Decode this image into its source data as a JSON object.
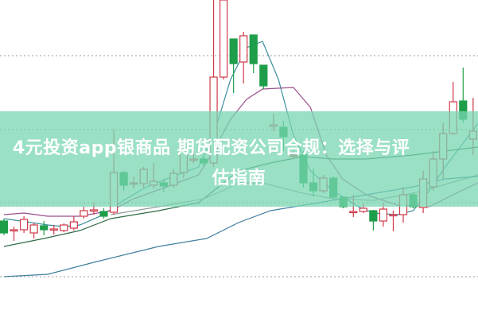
{
  "overlay_title": {
    "line1": "4元投资app银商品 期货配资公司合规：选择与评",
    "line2": "估指南",
    "banner_color": "#78d6b2"
  },
  "chart_data": {
    "type": "candlestick",
    "title": "",
    "xlabel": "",
    "ylabel": "",
    "grid": "horizontal dotted",
    "gridlines": [
      330,
      237,
      145,
      52
    ],
    "ylim": [
      0,
      400
    ],
    "colors": {
      "up": "#d0394a",
      "down": "#1e9e4a"
    },
    "candles": [
      {
        "o": 122,
        "c": 107,
        "h": 125,
        "l": 104
      },
      {
        "o": 110,
        "c": 111,
        "h": 115,
        "l": 97
      },
      {
        "o": 111,
        "c": 124,
        "h": 128,
        "l": 107
      },
      {
        "o": 107,
        "c": 117,
        "h": 120,
        "l": 100
      },
      {
        "o": 116,
        "c": 111,
        "h": 122,
        "l": 104
      },
      {
        "o": 112,
        "c": 112,
        "h": 117,
        "l": 105
      },
      {
        "o": 110,
        "c": 117,
        "h": 119,
        "l": 108
      },
      {
        "o": 113,
        "c": 121,
        "h": 128,
        "l": 110
      },
      {
        "o": 128,
        "c": 135,
        "h": 140,
        "l": 125
      },
      {
        "o": 136,
        "c": 136,
        "h": 145,
        "l": 130
      },
      {
        "o": 134,
        "c": 128,
        "h": 138,
        "l": 125
      },
      {
        "o": 133,
        "c": 183,
        "h": 237,
        "l": 130
      },
      {
        "o": 183,
        "c": 167,
        "h": 185,
        "l": 160
      },
      {
        "o": 170,
        "c": 170,
        "h": 178,
        "l": 163
      },
      {
        "o": 169,
        "c": 187,
        "h": 190,
        "l": 164
      },
      {
        "o": 167,
        "c": 172,
        "h": 195,
        "l": 163
      },
      {
        "o": 170,
        "c": 166,
        "h": 175,
        "l": 158
      },
      {
        "o": 167,
        "c": 182,
        "h": 187,
        "l": 164
      },
      {
        "o": 183,
        "c": 210,
        "h": 220,
        "l": 176
      },
      {
        "o": 200,
        "c": 200,
        "h": 210,
        "l": 195
      },
      {
        "o": 200,
        "c": 195,
        "h": 204,
        "l": 190
      },
      {
        "o": 195,
        "c": 303,
        "h": 400,
        "l": 190
      },
      {
        "o": 303,
        "c": 400,
        "h": 400,
        "l": 300
      },
      {
        "o": 351,
        "c": 320,
        "h": 351,
        "l": 283
      },
      {
        "o": 322,
        "c": 355,
        "h": 360,
        "l": 295
      },
      {
        "o": 356,
        "c": 320,
        "h": 356,
        "l": 308
      },
      {
        "o": 318,
        "c": 292,
        "h": 318,
        "l": 288
      },
      {
        "o": 241,
        "c": 243,
        "h": 257,
        "l": 235
      },
      {
        "o": 240,
        "c": 228,
        "h": 248,
        "l": 210
      },
      {
        "o": 205,
        "c": 205,
        "h": 210,
        "l": 200
      },
      {
        "o": 205,
        "c": 170,
        "h": 210,
        "l": 164
      },
      {
        "o": 170,
        "c": 160,
        "h": 188,
        "l": 153
      },
      {
        "o": 160,
        "c": 176,
        "h": 180,
        "l": 157
      },
      {
        "o": 176,
        "c": 152,
        "h": 178,
        "l": 150
      },
      {
        "o": 152,
        "c": 140,
        "h": 152,
        "l": 138
      },
      {
        "o": 133,
        "c": 134,
        "h": 155,
        "l": 127
      },
      {
        "o": 134,
        "c": 138,
        "h": 144,
        "l": 132
      },
      {
        "o": 135,
        "c": 122,
        "h": 136,
        "l": 110
      },
      {
        "o": 122,
        "c": 137,
        "h": 145,
        "l": 115
      },
      {
        "o": 130,
        "c": 130,
        "h": 135,
        "l": 109
      },
      {
        "o": 130,
        "c": 155,
        "h": 165,
        "l": 120
      },
      {
        "o": 155,
        "c": 140,
        "h": 157,
        "l": 138
      },
      {
        "o": 139,
        "c": 175,
        "h": 185,
        "l": 132
      },
      {
        "o": 165,
        "c": 200,
        "h": 210,
        "l": 160
      },
      {
        "o": 200,
        "c": 232,
        "h": 245,
        "l": 175
      },
      {
        "o": 232,
        "c": 272,
        "h": 297,
        "l": 230
      },
      {
        "o": 273,
        "c": 250,
        "h": 315,
        "l": 245
      },
      {
        "o": 225,
        "c": 235,
        "h": 277,
        "l": 205
      }
    ],
    "moving_averages": [
      {
        "color": "#3a8f9a",
        "points": [
          [
            0,
            125
          ],
          [
            4.4,
            117
          ],
          [
            6,
            115
          ],
          [
            7.6,
            117
          ],
          [
            10,
            130
          ],
          [
            11.6,
            145
          ],
          [
            14,
            163
          ],
          [
            16.3,
            175
          ],
          [
            19.5,
            190
          ],
          [
            21,
            230
          ],
          [
            22.7,
            300
          ],
          [
            24.3,
            340
          ],
          [
            25.9,
            348
          ],
          [
            27.5,
            300
          ],
          [
            29,
            230
          ],
          [
            30.7,
            185
          ],
          [
            33,
            160
          ],
          [
            35.5,
            140
          ],
          [
            37,
            132
          ],
          [
            39.4,
            130
          ],
          [
            41,
            135
          ],
          [
            42.6,
            160
          ],
          [
            44.2,
            190
          ],
          [
            46.6,
            230
          ],
          [
            47.5,
            245
          ]
        ]
      },
      {
        "color": "#9a4f8a",
        "points": [
          [
            0,
            130
          ],
          [
            2,
            132
          ],
          [
            4.4,
            128
          ],
          [
            7.6,
            128
          ],
          [
            10.7,
            135
          ],
          [
            13,
            150
          ],
          [
            16.3,
            165
          ],
          [
            19.5,
            180
          ],
          [
            21,
            210
          ],
          [
            22.7,
            250
          ],
          [
            24.3,
            275
          ],
          [
            25.9,
            288
          ],
          [
            29,
            290
          ],
          [
            30.7,
            265
          ],
          [
            32.3,
            205
          ],
          [
            33.9,
            175
          ],
          [
            36.3,
            155
          ],
          [
            39.4,
            142
          ],
          [
            42.6,
            140
          ],
          [
            45.8,
            160
          ],
          [
            47.5,
            170
          ]
        ]
      },
      {
        "color": "#2f6b45",
        "points": [
          [
            0,
            90
          ],
          [
            4,
            100
          ],
          [
            7.6,
            110
          ],
          [
            10.7,
            125
          ],
          [
            15.5,
            135
          ],
          [
            19.5,
            145
          ],
          [
            21,
            160
          ],
          [
            23.5,
            185
          ],
          [
            26.7,
            195
          ],
          [
            29.9,
            203
          ],
          [
            33,
            200
          ],
          [
            36.3,
            200
          ],
          [
            41,
            205
          ],
          [
            44.2,
            210
          ],
          [
            47.5,
            215
          ]
        ]
      },
      {
        "color": "#8f9a9a",
        "points": [
          [
            10.7,
            130
          ],
          [
            15.5,
            140
          ],
          [
            20,
            150
          ],
          [
            21.9,
            160
          ],
          [
            23.5,
            170
          ],
          [
            25.9,
            170
          ],
          [
            29.9,
            157
          ],
          [
            33,
            150
          ],
          [
            37,
            148
          ],
          [
            41,
            157
          ],
          [
            44.2,
            168
          ],
          [
            47.5,
            180
          ]
        ]
      },
      {
        "color": "#3f7f9f",
        "points": [
          [
            0,
            52
          ],
          [
            4.4,
            55
          ],
          [
            9,
            70
          ],
          [
            15.5,
            90
          ],
          [
            20.3,
            100
          ],
          [
            23.5,
            120
          ],
          [
            26.7,
            135
          ],
          [
            31.5,
            145
          ],
          [
            36.3,
            155
          ],
          [
            41,
            165
          ],
          [
            44.2,
            175
          ],
          [
            47.5,
            178
          ]
        ]
      }
    ]
  }
}
